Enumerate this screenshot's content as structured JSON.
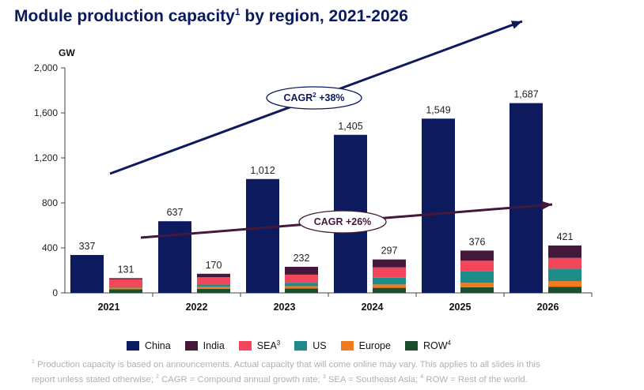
{
  "title": {
    "main": "Module production capacity",
    "sup": "1",
    "rest": " by region, 2021-2026"
  },
  "chart_data": {
    "type": "bar",
    "ylabel": "GW",
    "ylim": [
      0,
      2000
    ],
    "yticks": [
      0,
      400,
      800,
      1200,
      1600,
      2000
    ],
    "ytick_labels": [
      "0",
      "400",
      "800",
      "1,200",
      "1,600",
      "2,000"
    ],
    "categories": [
      "2021",
      "2022",
      "2023",
      "2024",
      "2025",
      "2026"
    ],
    "china": {
      "name": "China",
      "color": "#0d1a5e",
      "values": [
        337,
        637,
        1012,
        1405,
        1549,
        1687
      ],
      "labels": [
        "337",
        "637",
        "1,012",
        "1,405",
        "1,549",
        "1,687"
      ]
    },
    "stack_totals": [
      131,
      170,
      232,
      297,
      376,
      421
    ],
    "stack_series": [
      {
        "name": "ROW",
        "sup": "4",
        "color": "#1c4d2c",
        "values": [
          32,
          36,
          40,
          45,
          50,
          55
        ]
      },
      {
        "name": "Europe",
        "sup": "",
        "color": "#f07a1e",
        "values": [
          15,
          18,
          20,
          30,
          40,
          50
        ]
      },
      {
        "name": "US",
        "sup": "",
        "color": "#1f8c8c",
        "values": [
          10,
          20,
          30,
          60,
          100,
          110
        ]
      },
      {
        "name": "SEA",
        "sup": "3",
        "color": "#f2475a",
        "values": [
          64,
          66,
          72,
          92,
          96,
          96
        ]
      },
      {
        "name": "India",
        "sup": "",
        "color": "#43183a",
        "values": [
          10,
          30,
          70,
          70,
          90,
          110
        ]
      }
    ],
    "legend_order": [
      "China",
      "India",
      "SEA",
      "US",
      "Europe",
      "ROW"
    ],
    "annotations": [
      {
        "text": "CAGR",
        "sup": "2",
        "rest": " +38%",
        "color": "#0d1a5e"
      },
      {
        "text": "CAGR",
        "sup": "",
        "rest": " +26%",
        "color": "#43183a"
      }
    ]
  },
  "footnote": {
    "line1_sup": "1",
    "line1": " Production capacity is based on announcements. Actual capacity that will come online may vary. This applies to all slides in this",
    "line2a": "report unless stated otherwise; ",
    "sup2": "2",
    "line2b": " CAGR = Compound annual growth rate; ",
    "sup3": "3",
    "line2c": " SEA = Southeast Asia; ",
    "sup4": "4",
    "line2d": " ROW = Rest of the world."
  }
}
